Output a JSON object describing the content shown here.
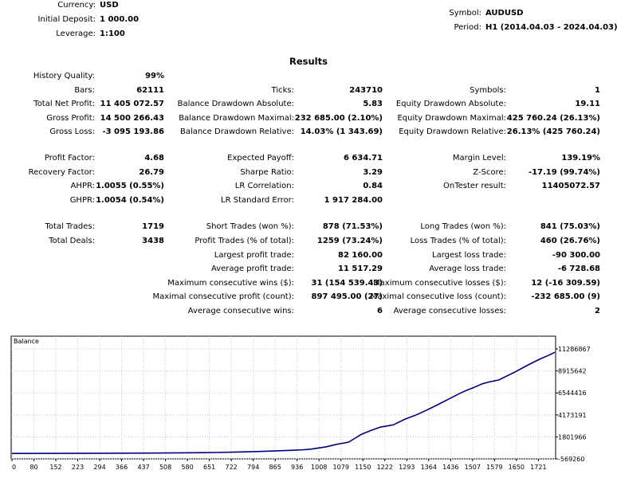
{
  "header": {
    "currency_label": "Currency:",
    "currency": "USD",
    "deposit_label": "Initial Deposit:",
    "deposit": "1 000.00",
    "leverage_label": "Leverage:",
    "leverage": "1:100",
    "symbol_label": "Symbol:",
    "symbol": "AUDUSD",
    "period_label": "Period:",
    "period": "H1 (2014.04.03 - 2024.04.03)"
  },
  "results_title": "Results",
  "stats": {
    "history_quality": {
      "label": "History Quality:",
      "value": "99%"
    },
    "col1": [
      {
        "label": "Bars:",
        "value": "62111"
      },
      {
        "label": "Total Net Profit:",
        "value": "11 405 072.57"
      },
      {
        "label": "Gross Profit:",
        "value": "14 500 266.43"
      },
      {
        "label": "Gross Loss:",
        "value": "-3 095 193.86"
      },
      {
        "label": "Profit Factor:",
        "value": "4.68"
      },
      {
        "label": "Recovery Factor:",
        "value": "26.79"
      },
      {
        "label": "AHPR:",
        "value": "1.0055 (0.55%)"
      },
      {
        "label": "GHPR:",
        "value": "1.0054 (0.54%)"
      },
      {
        "label": "Total Trades:",
        "value": "1719"
      },
      {
        "label": "Total Deals:",
        "value": "3438"
      }
    ],
    "col2": [
      {
        "label": "Ticks:",
        "value": "243710"
      },
      {
        "label": "Balance Drawdown Absolute:",
        "value": "5.83"
      },
      {
        "label": "Balance Drawdown Maximal:",
        "value": "232 685.00 (2.10%)"
      },
      {
        "label": "Balance Drawdown Relative:",
        "value": "14.03% (1 343.69)"
      },
      {
        "label": "Expected Payoff:",
        "value": "6 634.71"
      },
      {
        "label": "Sharpe Ratio:",
        "value": "3.29"
      },
      {
        "label": "LR Correlation:",
        "value": "0.84"
      },
      {
        "label": "LR Standard Error:",
        "value": "1 917 284.00"
      },
      {
        "label": "Short Trades (won %):",
        "value": "878 (71.53%)"
      },
      {
        "label": "Profit Trades (% of total):",
        "value": "1259 (73.24%)"
      },
      {
        "label": "Largest profit trade:",
        "value": "82 160.00"
      },
      {
        "label": "Average profit trade:",
        "value": "11 517.29"
      },
      {
        "label": "Maximum consecutive wins ($):",
        "value": "31 (154 539.43)"
      },
      {
        "label": "Maximal consecutive profit (count):",
        "value": "897 495.00 (27)"
      },
      {
        "label": "Average consecutive wins:",
        "value": "6"
      }
    ],
    "col3": [
      {
        "label": "Symbols:",
        "value": "1"
      },
      {
        "label": "Equity Drawdown Absolute:",
        "value": "19.11"
      },
      {
        "label": "Equity Drawdown Maximal:",
        "value": "425 760.24 (26.13%)"
      },
      {
        "label": "Equity Drawdown Relative:",
        "value": "26.13% (425 760.24)"
      },
      {
        "label": "Margin Level:",
        "value": "139.19%"
      },
      {
        "label": "Z-Score:",
        "value": "-17.19 (99.74%)"
      },
      {
        "label": "OnTester result:",
        "value": "11405072.57"
      },
      {
        "label": "Long Trades (won %):",
        "value": "841 (75.03%)"
      },
      {
        "label": "Loss Trades (% of total):",
        "value": "460 (26.76%)"
      },
      {
        "label": "Largest loss trade:",
        "value": "-90 300.00"
      },
      {
        "label": "Average loss trade:",
        "value": "-6 728.68"
      },
      {
        "label": "Maximum consecutive losses ($):",
        "value": "12 (-16 309.59)"
      },
      {
        "label": "Maximal consecutive loss (count):",
        "value": "-232 685.00 (9)"
      },
      {
        "label": "Average consecutive losses:",
        "value": "2"
      }
    ]
  },
  "chart_data": {
    "type": "line",
    "title": "Balance",
    "line_color": "#000080",
    "x_ticks": [
      "0",
      "80",
      "152",
      "223",
      "294",
      "366",
      "437",
      "508",
      "580",
      "651",
      "722",
      "794",
      "865",
      "936",
      "1008",
      "1079",
      "1150",
      "1222",
      "1293",
      "1364",
      "1436",
      "1507",
      "1579",
      "1650",
      "1721"
    ],
    "y_ticks": [
      "11286867",
      "8915642",
      "6544416",
      "4173191",
      "1801966",
      "-569260"
    ],
    "ylim": [
      -569260,
      11286867
    ],
    "xlim": [
      0,
      1740
    ],
    "series": [
      {
        "x": [
          0,
          150,
          300,
          450,
          580,
          650,
          720,
          794,
          865,
          900,
          936,
          960,
          1008,
          1040,
          1079,
          1100,
          1120,
          1150,
          1180,
          1222,
          1260,
          1293,
          1330,
          1364,
          1400,
          1436,
          1460,
          1480,
          1507,
          1530,
          1560,
          1579,
          1610,
          1650,
          1680,
          1700,
          1721,
          1740
        ],
        "values": [
          1000,
          5000,
          20000,
          40000,
          70000,
          100000,
          150000,
          210000,
          290000,
          330000,
          390000,
          460000,
          700000,
          950000,
          1180000,
          1600000,
          2000000,
          2400000,
          2750000,
          3000000,
          3600000,
          4000000,
          4550000,
          5100000,
          5700000,
          6300000,
          6650000,
          6900000,
          7300000,
          7500000,
          7700000,
          8000000,
          8500000,
          9200000,
          9700000,
          10000000,
          10300000,
          10600000
        ]
      }
    ],
    "grid": true
  }
}
